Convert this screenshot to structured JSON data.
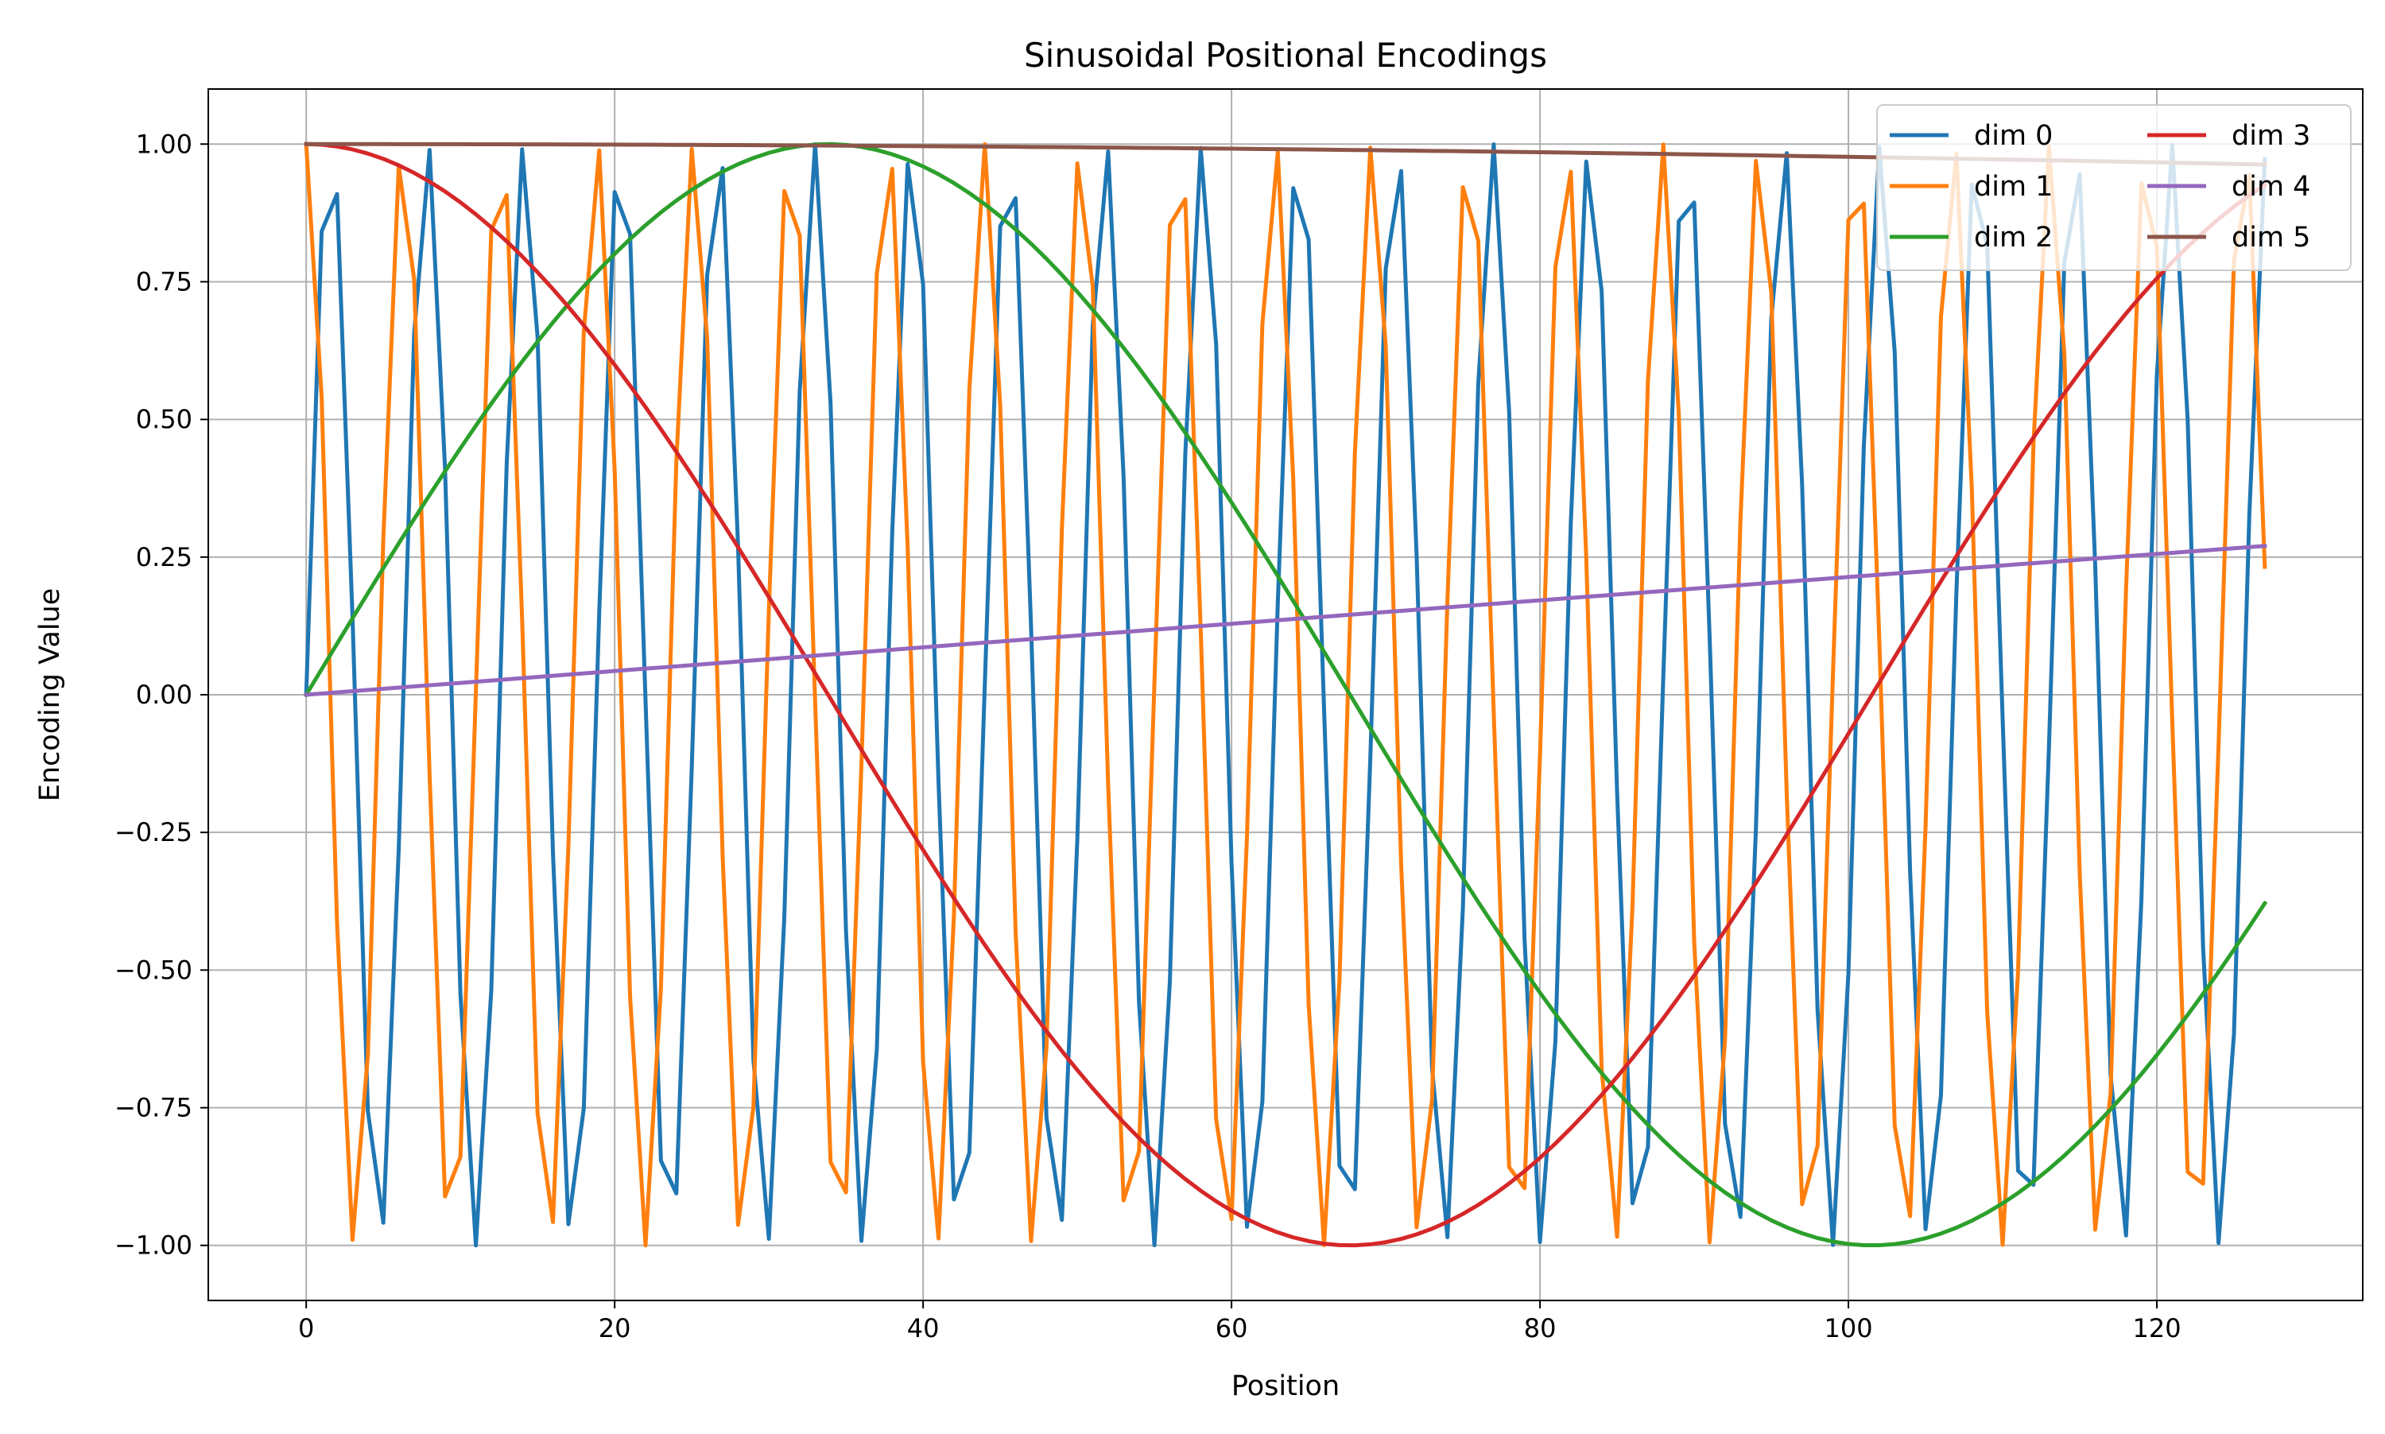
{
  "chart_data": {
    "type": "line",
    "title": "Sinusoidal Positional Encodings",
    "xlabel": "Position",
    "ylabel": "Encoding Value",
    "xlim": [
      -6.35,
      133.35
    ],
    "ylim": [
      -1.1,
      1.1
    ],
    "x_ticks": [
      0,
      20,
      40,
      60,
      80,
      100,
      120
    ],
    "x_tick_labels": [
      "0",
      "20",
      "40",
      "60",
      "80",
      "100",
      "120"
    ],
    "y_ticks": [
      -1.0,
      -0.75,
      -0.5,
      -0.25,
      0.0,
      0.25,
      0.5,
      0.75,
      1.0
    ],
    "y_tick_labels": [
      "−1.00",
      "−0.75",
      "−0.50",
      "−0.25",
      "0.00",
      "0.25",
      "0.50",
      "0.75",
      "1.00"
    ],
    "grid": true,
    "legend": {
      "placement": "top-right",
      "columns": 2
    },
    "x": [
      0,
      1,
      2,
      3,
      4,
      5,
      6,
      7,
      8,
      9,
      10,
      11,
      12,
      13,
      14,
      15,
      16,
      17,
      18,
      19,
      20,
      21,
      22,
      23,
      24,
      25,
      26,
      27,
      28,
      29,
      30,
      31,
      32,
      33,
      34,
      35,
      36,
      37,
      38,
      39,
      40,
      41,
      42,
      43,
      44,
      45,
      46,
      47,
      48,
      49,
      50,
      51,
      52,
      53,
      54,
      55,
      56,
      57,
      58,
      59,
      60,
      61,
      62,
      63,
      64,
      65,
      66,
      67,
      68,
      69,
      70,
      71,
      72,
      73,
      74,
      75,
      76,
      77,
      78,
      79,
      80,
      81,
      82,
      83,
      84,
      85,
      86,
      87,
      88,
      89,
      90,
      91,
      92,
      93,
      94,
      95,
      96,
      97,
      98,
      99,
      100,
      101,
      102,
      103,
      104,
      105,
      106,
      107,
      108,
      109,
      110,
      111,
      112,
      113,
      114,
      115,
      116,
      117,
      118,
      119,
      120,
      121,
      122,
      123,
      124,
      125,
      126,
      127
    ],
    "series": [
      {
        "name": "dim 0",
        "color": "#1f77b4",
        "formula": "sin",
        "frequency": 1.0
      },
      {
        "name": "dim 1",
        "color": "#ff7f0e",
        "formula": "cos",
        "frequency": 1.0
      },
      {
        "name": "dim 2",
        "color": "#2ca02c",
        "formula": "sin",
        "frequency": 0.046416
      },
      {
        "name": "dim 3",
        "color": "#d62728",
        "formula": "cos",
        "frequency": 0.046416
      },
      {
        "name": "dim 4",
        "color": "#9467bd",
        "formula": "sin",
        "frequency": 0.0021544
      },
      {
        "name": "dim 5",
        "color": "#8c564b",
        "formula": "cos",
        "frequency": 0.0021544
      }
    ]
  }
}
